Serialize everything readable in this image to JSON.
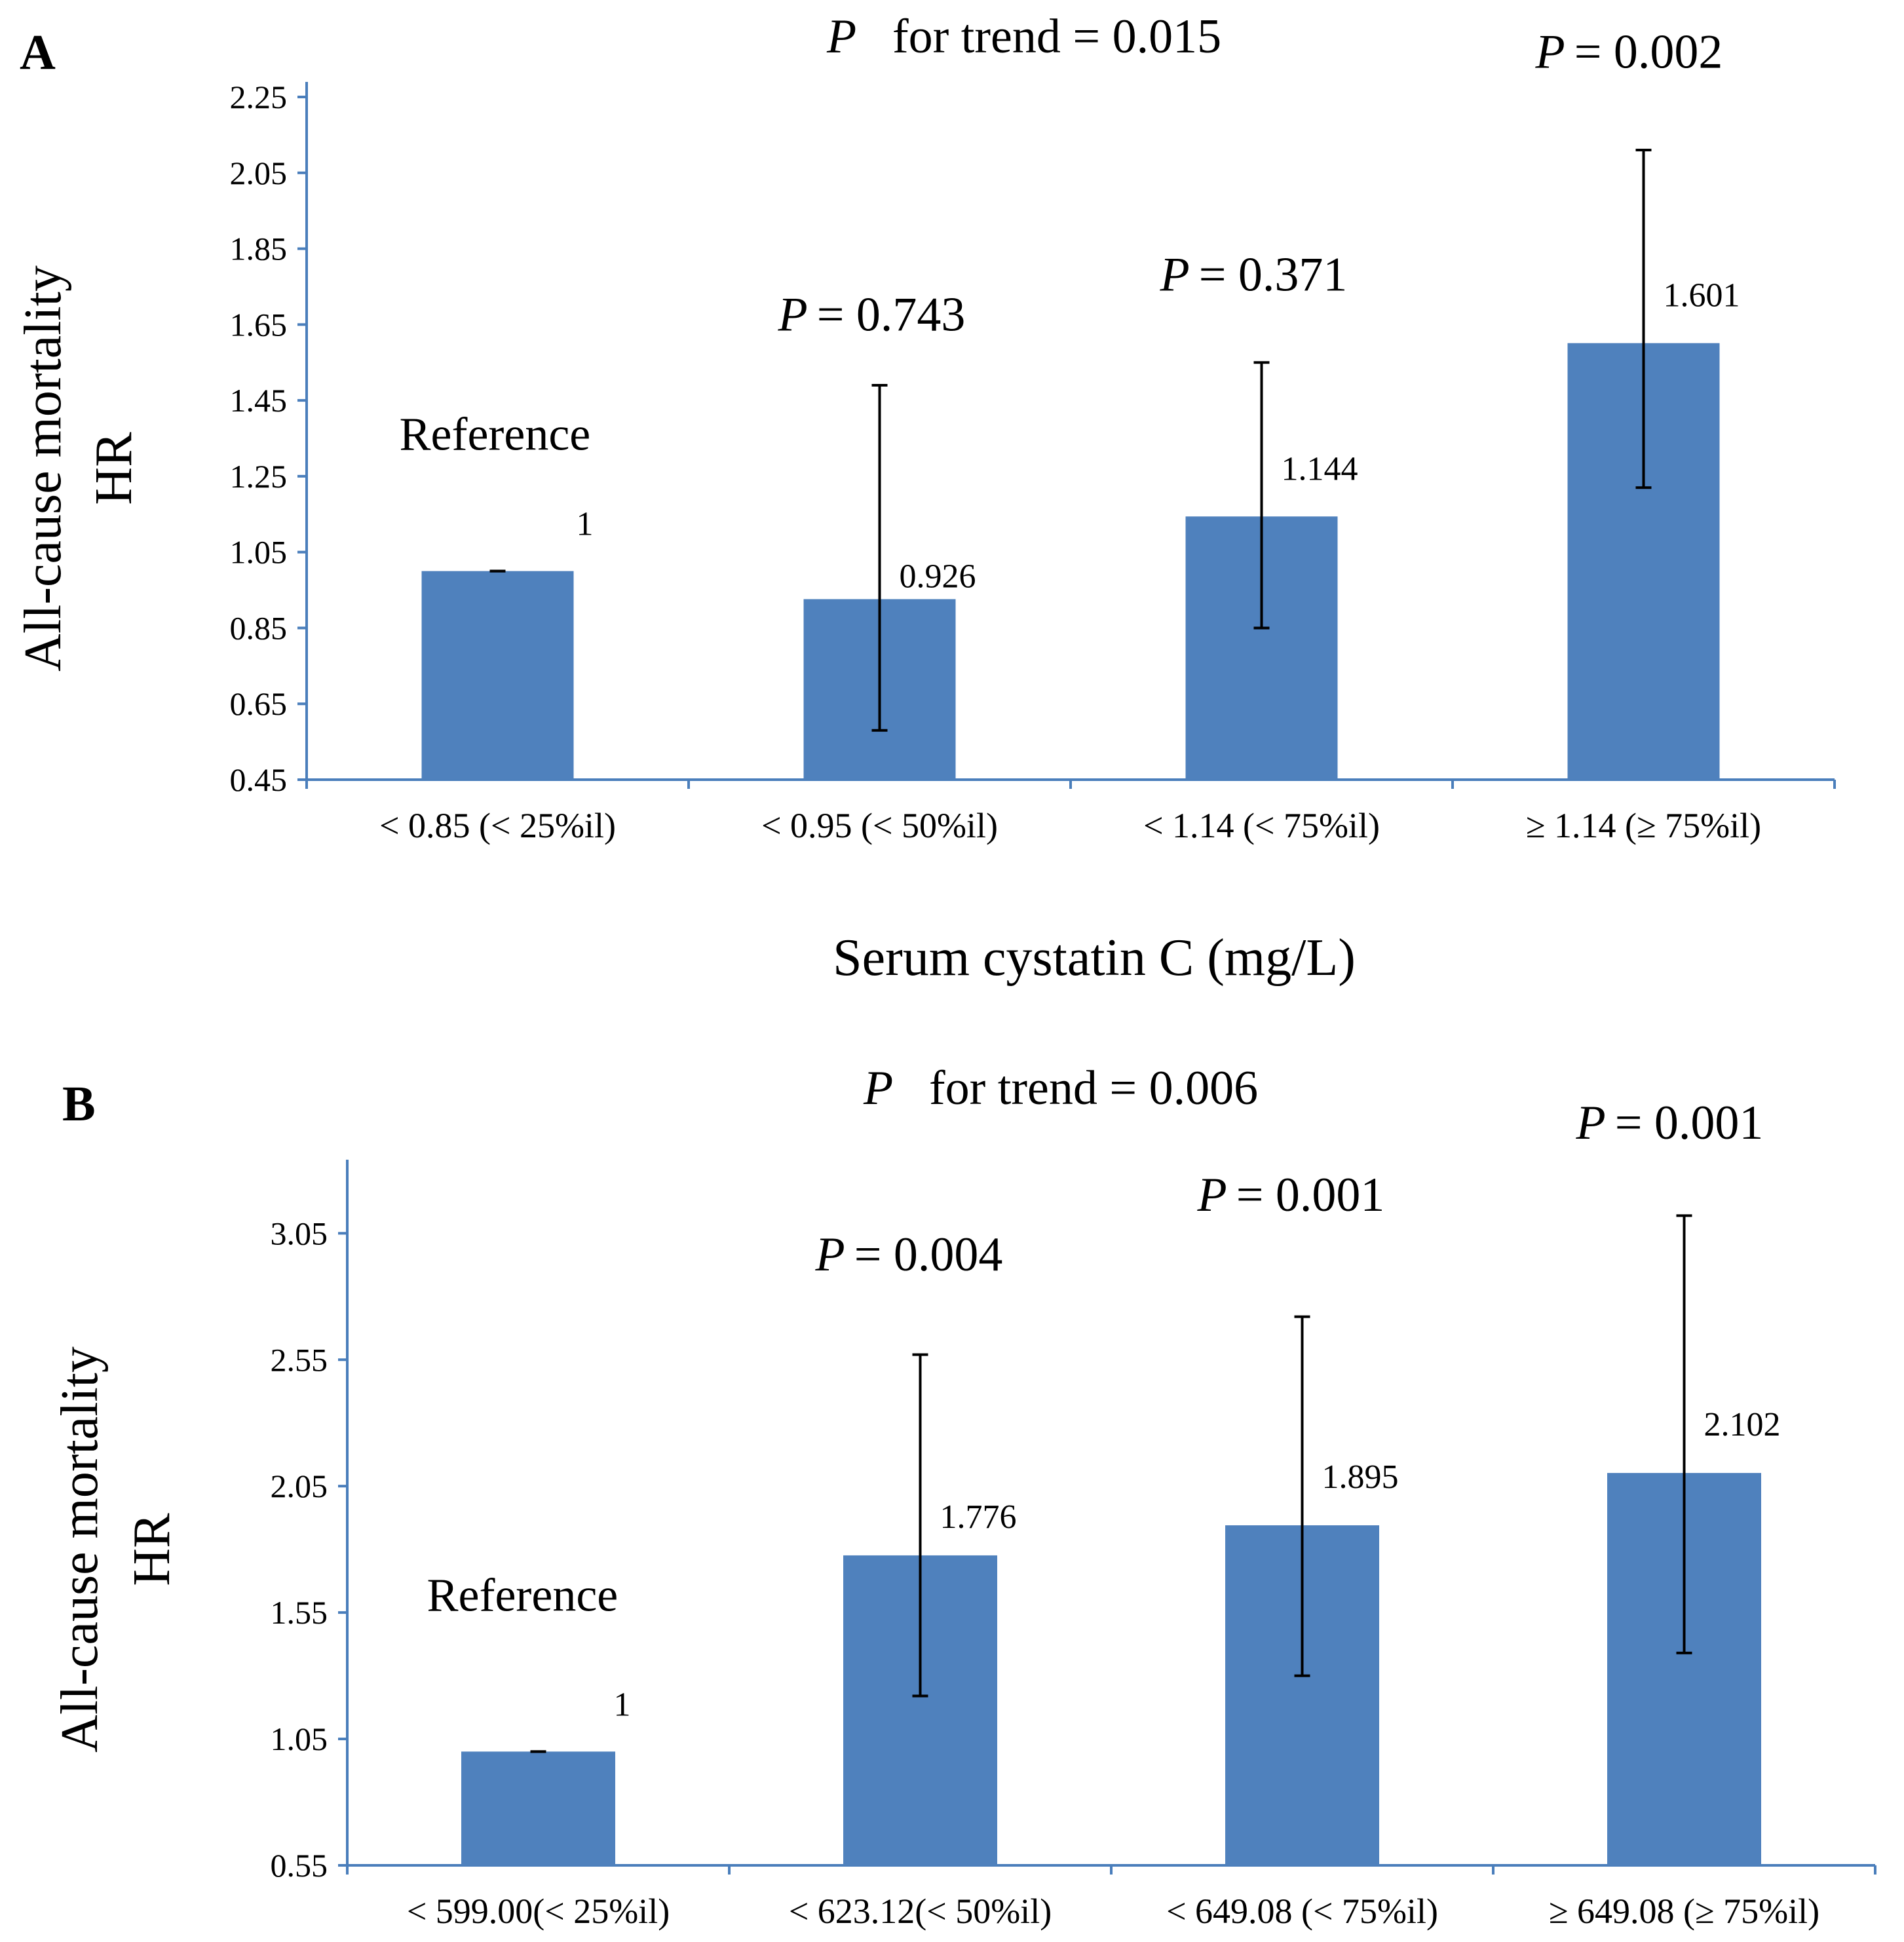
{
  "chart_data": [
    {
      "type": "bar",
      "panel_label": "A",
      "trend_label": "for trend = 0.015",
      "trend_p": "P",
      "xlabel": "Serum cystatin C (mg/L)",
      "ylabel": "All-cause mortality",
      "ylabel2": "HR",
      "ylim": [
        0.45,
        2.25
      ],
      "yticks": [
        "0.45",
        "0.65",
        "0.85",
        "1.05",
        "1.25",
        "1.45",
        "1.65",
        "1.85",
        "2.05",
        "2.25"
      ],
      "categories": [
        "< 0.85 (< 25%il)",
        "< 0.95 (< 50%il)",
        "< 1.14 (< 75%il)",
        "≥ 1.14 (≥ 75%il)"
      ],
      "values": [
        1,
        0.926,
        1.144,
        1.601
      ],
      "value_labels": [
        "1",
        "0.926",
        "1.144",
        "1.601"
      ],
      "err_low": [
        1,
        0.58,
        0.85,
        1.22
      ],
      "err_high": [
        1,
        1.49,
        1.55,
        2.11
      ],
      "annotations": [
        "Reference",
        "= 0.743",
        "= 0.371",
        "= 0.002"
      ],
      "bar_color": "#4f81bd"
    },
    {
      "type": "bar",
      "panel_label": "B",
      "trend_label": "for trend = 0.006",
      "trend_p": "P",
      "xlabel": "",
      "ylabel": "All-cause mortality",
      "ylabel2": "HR",
      "ylim": [
        0.55,
        3.45
      ],
      "yticks": [
        "0.55",
        "1.05",
        "1.55",
        "2.05",
        "2.55",
        "3.05"
      ],
      "categories": [
        "< 599.00(< 25%il)",
        "< 623.12(< 50%il)",
        "< 649.08 (< 75%il)",
        "≥ 649.08 (≥ 75%il)"
      ],
      "values": [
        1,
        1.776,
        1.895,
        2.102
      ],
      "value_labels": [
        "1",
        "1.776",
        "1.895",
        "2.102"
      ],
      "err_low": [
        1,
        1.22,
        1.3,
        1.39
      ],
      "err_high": [
        1,
        2.57,
        2.72,
        3.12
      ],
      "annotations": [
        "Reference",
        "= 0.004",
        "= 0.001",
        "= 0.001"
      ],
      "bar_color": "#4f81bd"
    }
  ]
}
